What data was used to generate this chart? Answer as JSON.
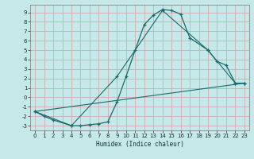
{
  "title": "",
  "xlabel": "Humidex (Indice chaleur)",
  "background_color": "#c5e8e8",
  "grid_color": "#daaaaaaa",
  "line_color": "#1a6b6b",
  "xlim": [
    -0.5,
    23.5
  ],
  "ylim": [
    -3.5,
    9.8
  ],
  "xticks": [
    0,
    1,
    2,
    3,
    4,
    5,
    6,
    7,
    8,
    9,
    10,
    11,
    12,
    13,
    14,
    15,
    16,
    17,
    18,
    19,
    20,
    21,
    22,
    23
  ],
  "yticks": [
    -3,
    -2,
    -1,
    0,
    1,
    2,
    3,
    4,
    5,
    6,
    7,
    8,
    9
  ],
  "line1_x": [
    0,
    1,
    2,
    4,
    5,
    6,
    7,
    8,
    9,
    10,
    11,
    12,
    13,
    14,
    15,
    16,
    17,
    19,
    20,
    21,
    22,
    23
  ],
  "line1_y": [
    -1.5,
    -2.0,
    -2.4,
    -3.0,
    -3.0,
    -2.9,
    -2.8,
    -2.6,
    -0.5,
    2.2,
    5.0,
    7.7,
    8.7,
    9.3,
    9.2,
    8.8,
    6.3,
    5.0,
    3.8,
    3.4,
    1.5,
    1.5
  ],
  "line2_x": [
    0,
    4,
    9,
    14,
    19,
    22,
    23
  ],
  "line2_y": [
    -1.5,
    -3.0,
    2.2,
    9.2,
    5.0,
    1.5,
    1.5
  ],
  "line3_x": [
    0,
    23
  ],
  "line3_y": [
    -1.5,
    1.5
  ]
}
